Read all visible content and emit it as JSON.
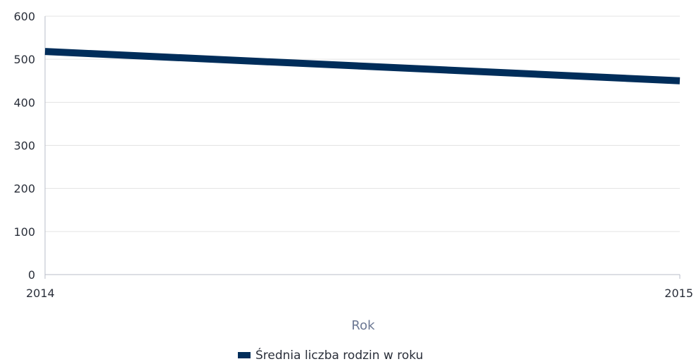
{
  "chart_data": {
    "type": "line",
    "x": [
      "2014",
      "2015"
    ],
    "series": [
      {
        "name": "Średnia liczba rodzin w roku",
        "values": [
          518,
          450
        ],
        "color": "#002d5a"
      }
    ],
    "xlabel": "Rok",
    "ylabel": "",
    "ylim": [
      0,
      600
    ],
    "yticks": [
      0,
      100,
      200,
      300,
      400,
      500,
      600
    ],
    "xticks": [
      "2014",
      "2015"
    ],
    "grid": true,
    "legend": "bottom-center"
  },
  "colors": {
    "line": "#002d5a",
    "grid": "#e3e3e3",
    "axis": "#b8bec8",
    "axis_title": "#6b7793"
  }
}
